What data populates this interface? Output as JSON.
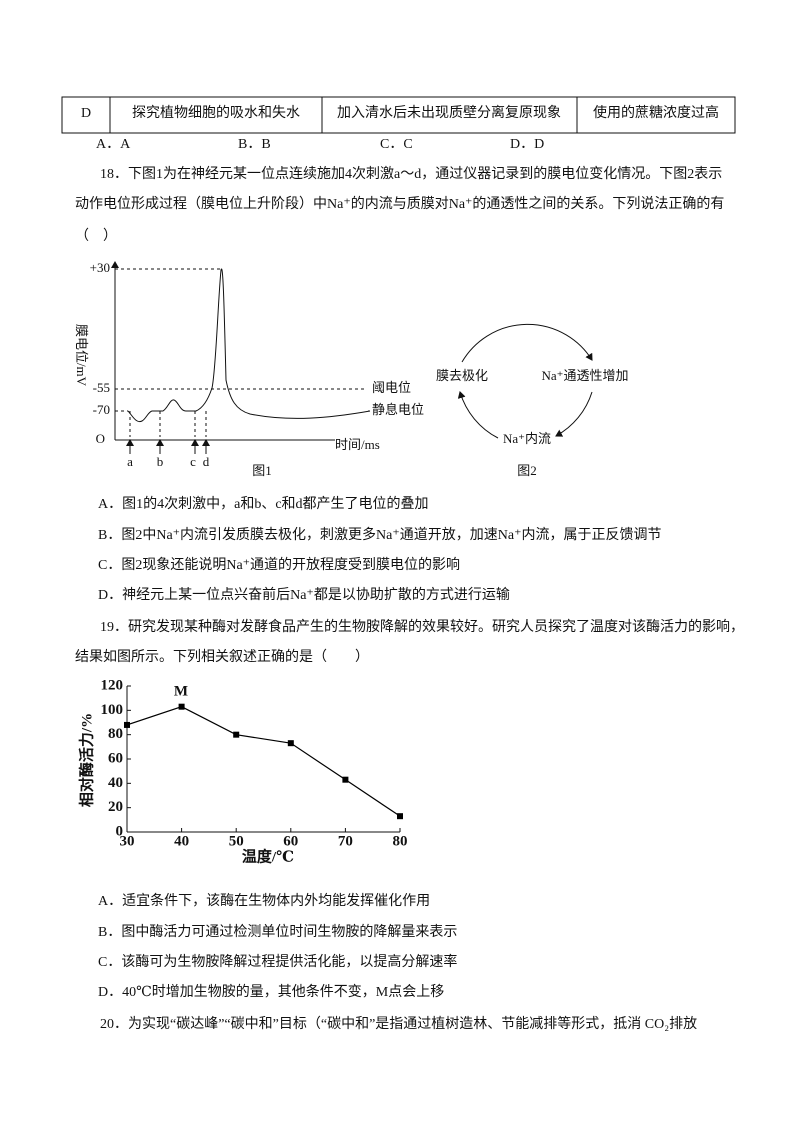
{
  "table_row": [
    "D",
    "探究植物细胞的吸水和失水",
    "加入清水后未出现质壁分离复原现象",
    "使用的蔗糖浓度过高"
  ],
  "q17_options": [
    "A．A",
    "B．B",
    "C．C",
    "D．D"
  ],
  "q18": {
    "stem": [
      "18．下图1为在神经元某一位点连续施加4次刺激a～d，通过仪器记录到的膜电位变化情况。下图2表示",
      "动作电位形成过程（膜电位上升阶段）中Na⁺的内流与质膜对Na⁺的通透性之间的关系。下列说法正确的有",
      "（　）"
    ],
    "figure1": {
      "y_labels": [
        "+30",
        "-55",
        "-70"
      ],
      "origin": "O",
      "y_axis_label": "膜电位/mV",
      "x_axis_label": "时间/ms",
      "threshold": "阈电位",
      "resting": "静息电位",
      "stimuli": [
        "a",
        "b",
        "c",
        "d"
      ],
      "caption": "图1"
    },
    "figure2": {
      "nodes": [
        "膜去极化",
        "Na⁺通透性增加",
        "Na⁺内流"
      ],
      "caption": "图2"
    },
    "options": [
      "A．图1的4次刺激中，a和b、c和d都产生了电位的叠加",
      "B．图2中Na⁺内流引发质膜去极化，刺激更多Na⁺通道开放，加速Na⁺内流，属于正反馈调节",
      "C．图2现象还能说明Na⁺通道的开放程度受到膜电位的影响",
      "D．神经元上某一位点兴奋前后Na⁺都是以协助扩散的方式进行运输"
    ]
  },
  "q19": {
    "stem": [
      "19．研究发现某种酶对发酵食品产生的生物胺降解的效果较好。研究人员探究了温度对该酶活力的影响，",
      "结果如图所示。下列相关叙述正确的是（　　）"
    ],
    "options": [
      "A．适宜条件下，该酶在生物体内外均能发挥催化作用",
      "B．图中酶活力可通过检测单位时间生物胺的降解量来表示",
      "C．该酶可为生物胺降解过程提供活化能，以提高分解速率",
      "D．40℃时增加生物胺的量，其他条件不变，M点会上移"
    ]
  },
  "chart_data": {
    "type": "line",
    "x": [
      30,
      40,
      50,
      60,
      70,
      80
    ],
    "values": [
      88,
      103,
      80,
      73,
      43,
      13
    ],
    "color": "#000000",
    "xlim": [
      30,
      80
    ],
    "xticks": [
      30,
      40,
      50,
      60,
      70,
      80
    ],
    "ylim": [
      0,
      120
    ],
    "yticks": [
      0,
      20,
      40,
      60,
      80,
      100,
      120
    ],
    "xlabel": "温度/℃",
    "ylabel": "相对酶活力/%",
    "annotation": "M"
  },
  "q20": {
    "stem": [
      "20．为实现“碳达峰”“碳中和”目标（“碳中和”是指通过植树造林、节能减排等形式，抵消 CO₂排放"
    ]
  }
}
